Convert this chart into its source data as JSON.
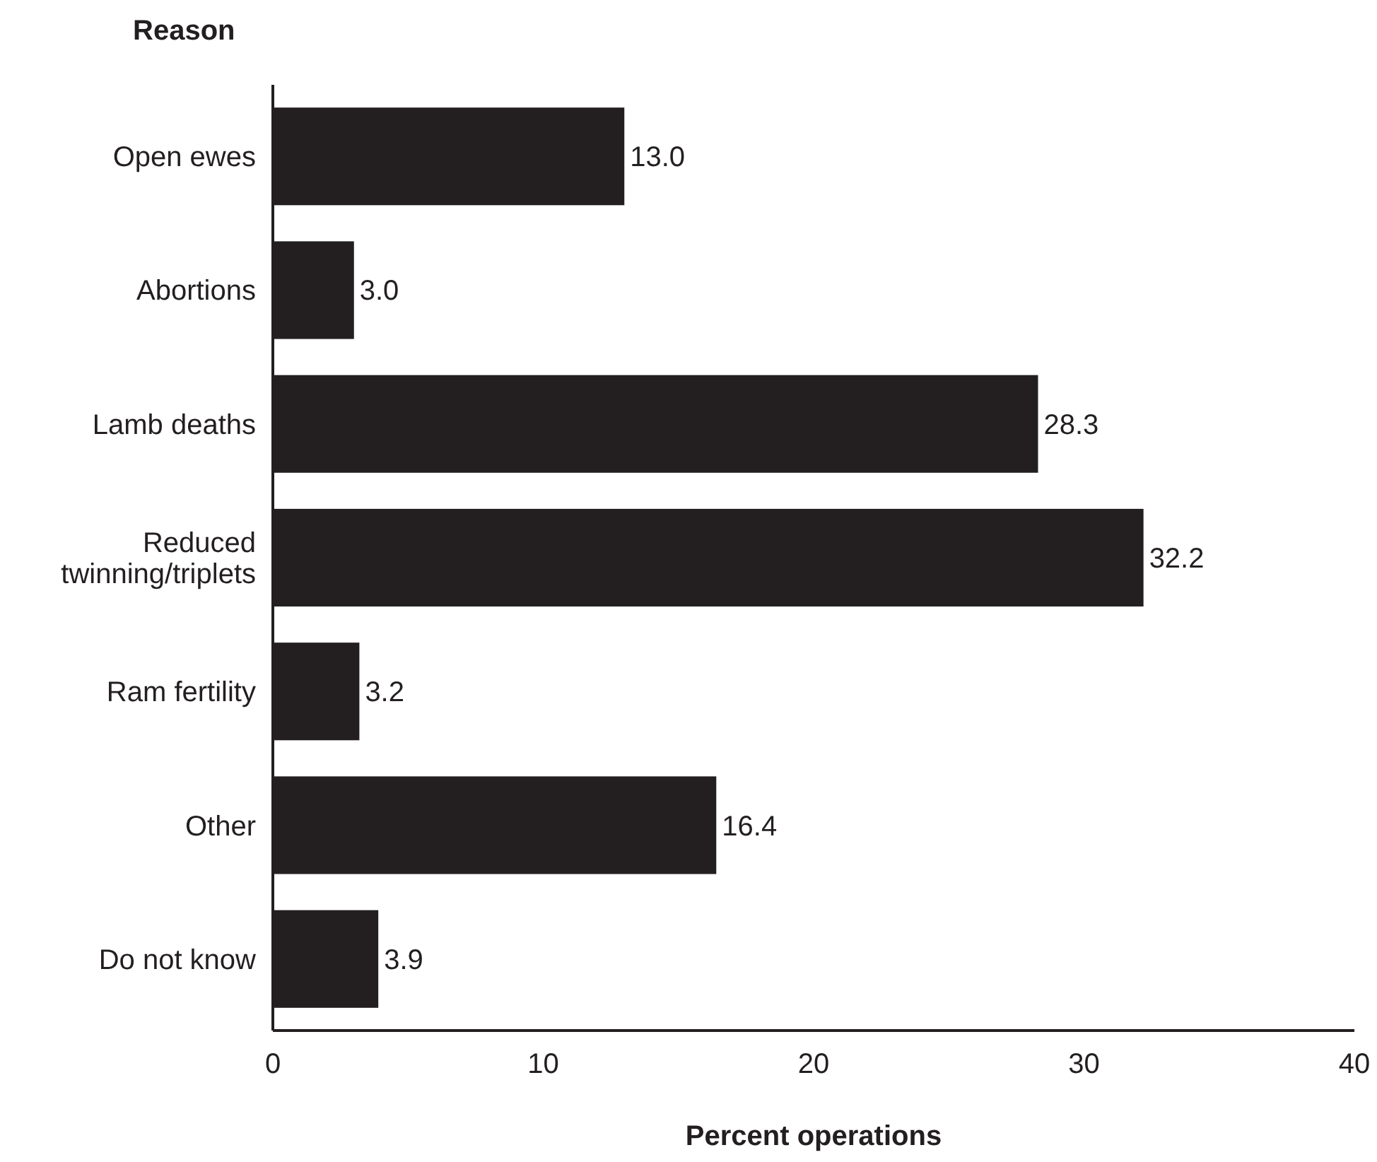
{
  "chart_data": {
    "type": "bar",
    "orientation": "horizontal",
    "ylabel": "Reason",
    "xlabel": "Percent operations",
    "categories": [
      "Open ewes",
      "Abortions",
      "Lamb deaths",
      "Reduced twinning/triplets",
      "Ram fertility",
      "Other",
      "Do not know"
    ],
    "values": [
      13.0,
      3.0,
      28.3,
      32.2,
      3.2,
      16.4,
      3.9
    ],
    "value_labels": [
      "13.0",
      "3.0",
      "28.3",
      "32.2",
      "3.2",
      "16.4",
      "3.9"
    ],
    "color": "#231f20",
    "xlim": [
      0,
      40
    ],
    "xticks": [
      0,
      10,
      20,
      30,
      40
    ],
    "grid": false
  }
}
